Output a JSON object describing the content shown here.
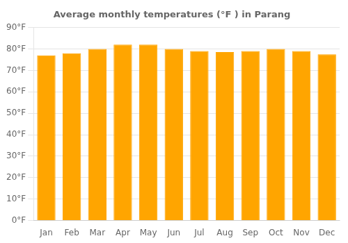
{
  "chart_data": {
    "type": "bar",
    "title": "Average monthly temperatures (°F ) in Parang",
    "categories": [
      "Jan",
      "Feb",
      "Mar",
      "Apr",
      "May",
      "Jun",
      "Jul",
      "Aug",
      "Sep",
      "Oct",
      "Nov",
      "Dec"
    ],
    "values": [
      77,
      78,
      80,
      82,
      82,
      80,
      79,
      78.5,
      79,
      80,
      79,
      77.5
    ],
    "color": "#FFA500",
    "ylim": [
      0,
      90
    ],
    "yticks": [
      {
        "value": 0,
        "label": "0°F"
      },
      {
        "value": 10,
        "label": "10°F"
      },
      {
        "value": 20,
        "label": "20°F"
      },
      {
        "value": 30,
        "label": "30°F"
      },
      {
        "value": 40,
        "label": "40°F"
      },
      {
        "value": 50,
        "label": "50°F"
      },
      {
        "value": 60,
        "label": "60°F"
      },
      {
        "value": 70,
        "label": "70°F"
      },
      {
        "value": 80,
        "label": "80°F"
      },
      {
        "value": 90,
        "label": "90°F"
      }
    ],
    "grid": true
  }
}
